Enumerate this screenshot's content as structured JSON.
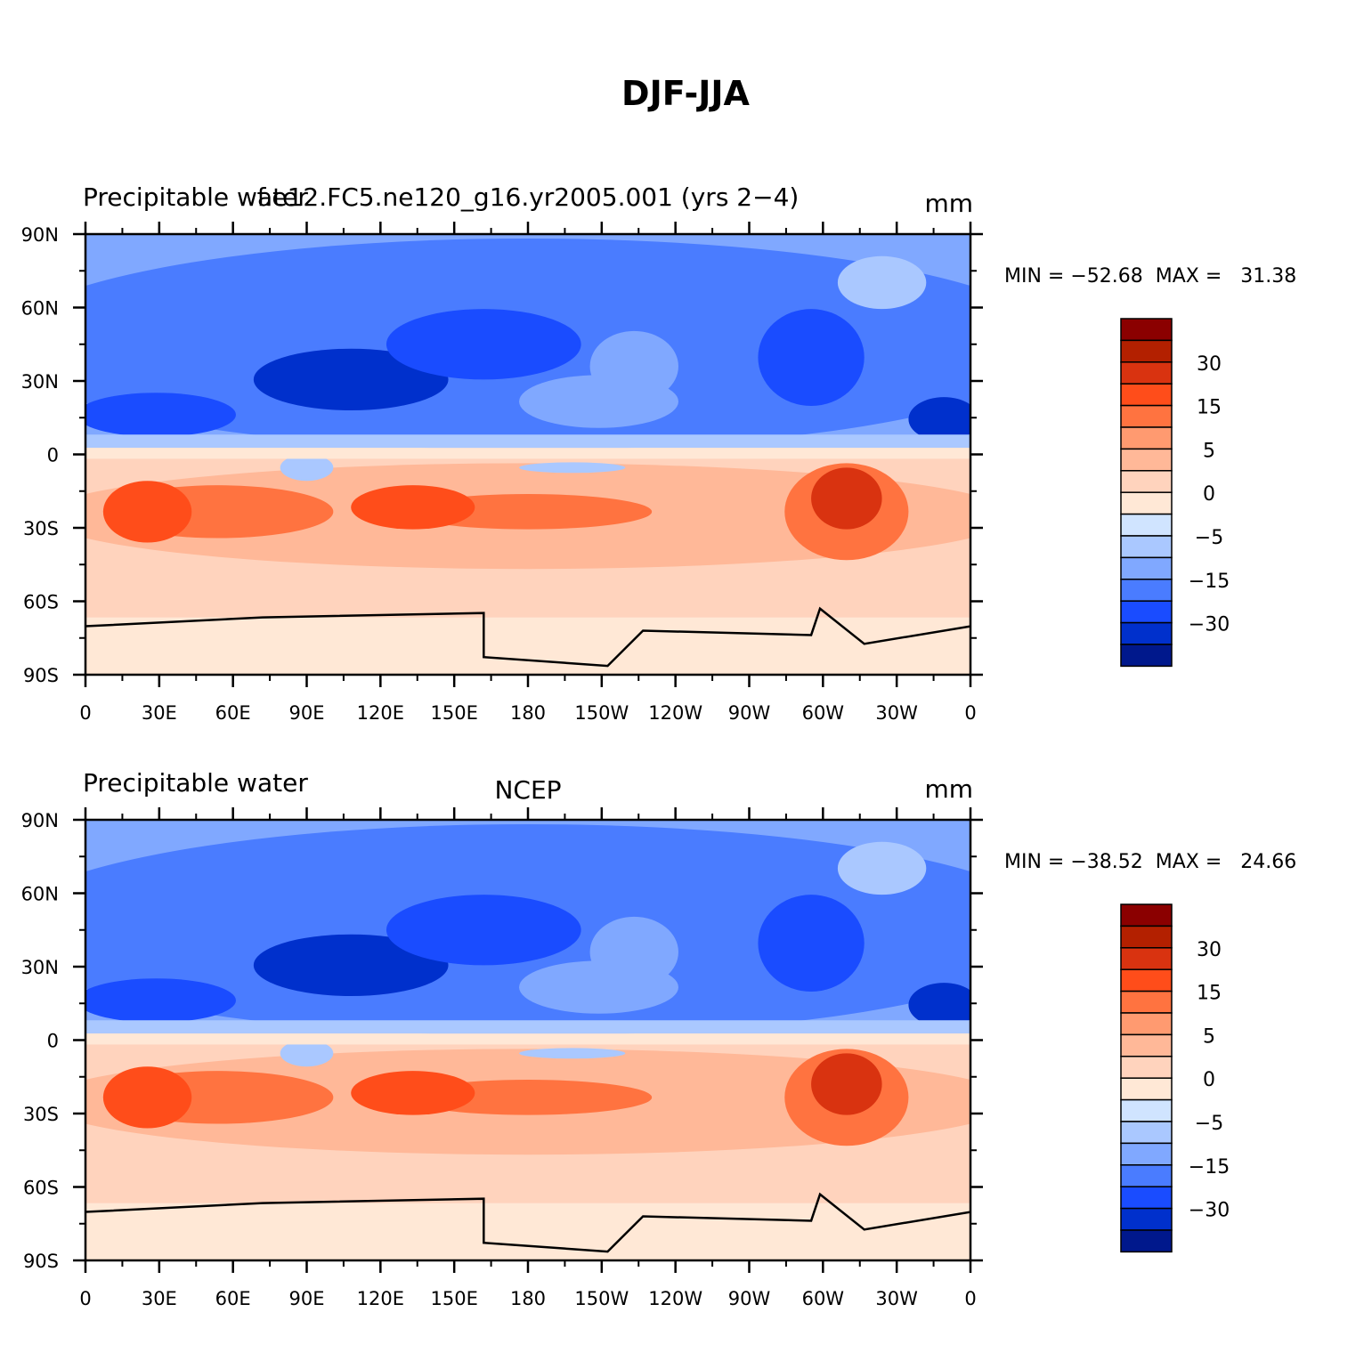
{
  "title": "DJF-JJA",
  "panels": [
    {
      "left_title": "Precipitable water",
      "center_title": "f.e12.FC5.ne120_g16.yr2005.001 (yrs 2−4)",
      "right_title": "mm",
      "stats": "MIN = −52.68  MAX =   31.38",
      "lat_labels": [
        "90N",
        "60N",
        "30N",
        "0",
        "30S",
        "60S",
        "90S"
      ],
      "lon_labels": [
        "0",
        "30E",
        "60E",
        "90E",
        "120E",
        "150E",
        "180",
        "150W",
        "120W",
        "90W",
        "60W",
        "30W",
        "0"
      ],
      "colorbar": {
        "colors": [
          "#8b0000",
          "#b32000",
          "#d93310",
          "#ff4d1a",
          "#ff7340",
          "#ff9a70",
          "#ffb898",
          "#ffd3bd",
          "#ffe8d6",
          "#d0e4ff",
          "#aac8ff",
          "#80a8ff",
          "#4a7cff",
          "#1a4cff",
          "#0030cc",
          "#00188c"
        ],
        "labels": [
          "30",
          "15",
          "5",
          "0",
          "−5",
          "−15",
          "−30"
        ]
      }
    },
    {
      "left_title": "Precipitable water",
      "center_title": "NCEP",
      "right_title": "mm",
      "stats": "MIN = −38.52  MAX =   24.66",
      "lat_labels": [
        "90N",
        "60N",
        "30N",
        "0",
        "30S",
        "60S",
        "90S"
      ],
      "lon_labels": [
        "0",
        "30E",
        "60E",
        "90E",
        "120E",
        "150E",
        "180",
        "150W",
        "120W",
        "90W",
        "60W",
        "30W",
        "0"
      ],
      "colorbar": {
        "colors": [
          "#8b0000",
          "#b32000",
          "#d93310",
          "#ff4d1a",
          "#ff7340",
          "#ff9a70",
          "#ffb898",
          "#ffd3bd",
          "#ffe8d6",
          "#d0e4ff",
          "#aac8ff",
          "#80a8ff",
          "#4a7cff",
          "#1a4cff",
          "#0030cc",
          "#00188c"
        ],
        "labels": [
          "30",
          "15",
          "5",
          "0",
          "−5",
          "−15",
          "−30"
        ]
      }
    }
  ]
}
